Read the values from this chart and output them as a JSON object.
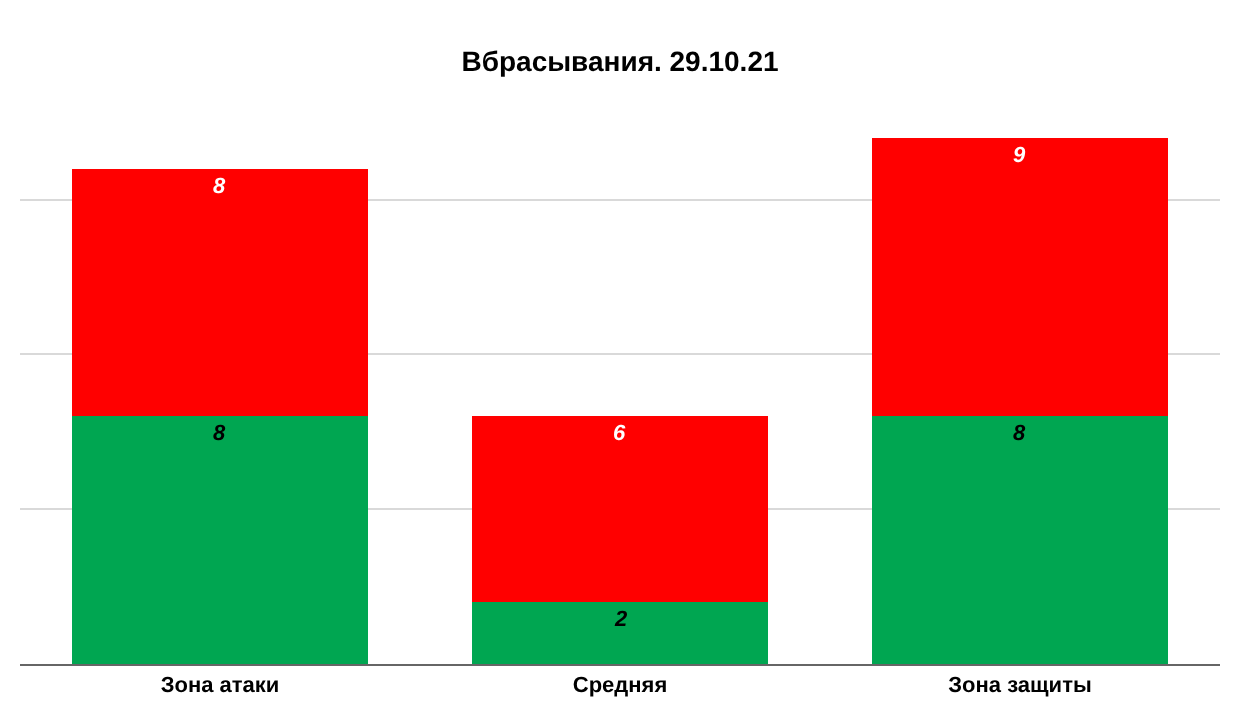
{
  "chart_data": {
    "type": "bar",
    "title": "Вбрасывания. 29.10.21",
    "categories": [
      "Зона атаки",
      "Средняя",
      "Зона защиты"
    ],
    "stacked": true,
    "data_labels": true,
    "grid": "y",
    "yticks": [
      {
        "value": 0,
        "label": null
      },
      {
        "value": 5,
        "label": null
      },
      {
        "value": 10,
        "label": null
      },
      {
        "value": 15,
        "label": null
      }
    ],
    "tick_labels": "x",
    "series": [
      {
        "color": "#00a651",
        "values": [
          8,
          2,
          8
        ]
      },
      {
        "color": "#ff0000",
        "values": [
          8,
          6,
          9
        ]
      }
    ]
  }
}
